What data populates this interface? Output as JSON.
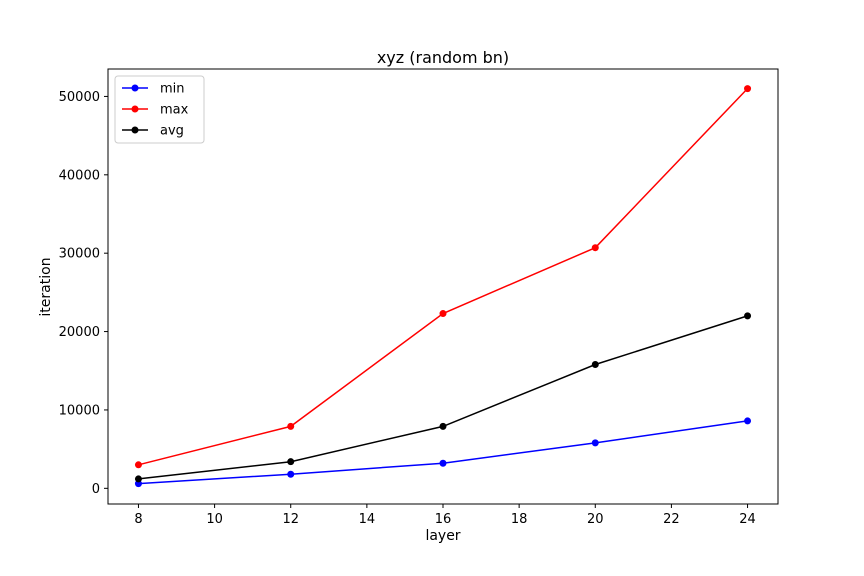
{
  "chart_data": {
    "type": "line",
    "title": "xyz (random bn)",
    "xlabel": "layer",
    "ylabel": "iteration",
    "x": [
      8,
      12,
      16,
      20,
      24
    ],
    "xlim": [
      7.2,
      24.8
    ],
    "ylim": [
      -2000,
      53500
    ],
    "xticks": [
      8,
      10,
      12,
      14,
      16,
      18,
      20,
      22,
      24
    ],
    "yticks": [
      0,
      10000,
      20000,
      30000,
      40000,
      50000
    ],
    "grid": false,
    "legend_position": "top-left",
    "series": [
      {
        "name": "min",
        "color": "#0000ff",
        "values": [
          600,
          1800,
          3200,
          5800,
          8600
        ]
      },
      {
        "name": "max",
        "color": "#ff0000",
        "values": [
          3000,
          7900,
          22300,
          30700,
          51000
        ]
      },
      {
        "name": "avg",
        "color": "#000000",
        "values": [
          1200,
          3400,
          7900,
          15800,
          22000
        ]
      }
    ]
  }
}
